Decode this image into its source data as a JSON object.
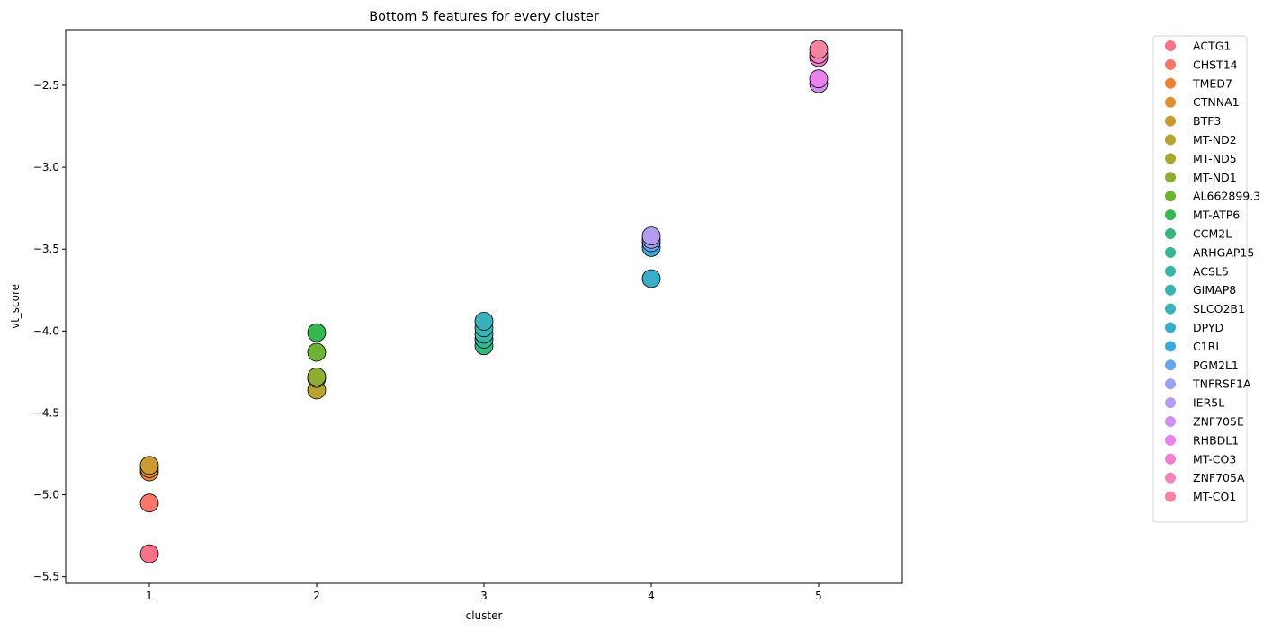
{
  "chart_data": {
    "type": "scatter",
    "title": "Bottom 5 features for every cluster",
    "xlabel": "cluster",
    "ylabel": "vt_score",
    "xlim": [
      0.5,
      5.5
    ],
    "ylim": [
      -5.54,
      -2.16
    ],
    "x_ticks": [
      1,
      2,
      3,
      4,
      5
    ],
    "x_tick_labels": [
      "1",
      "2",
      "3",
      "4",
      "5"
    ],
    "y_ticks": [
      -5.5,
      -5.0,
      -4.5,
      -4.0,
      -3.5,
      -3.0,
      -2.5
    ],
    "y_tick_labels": [
      "−5.5",
      "−5.0",
      "−4.5",
      "−4.0",
      "−3.5",
      "−3.0",
      "−2.5"
    ],
    "grid": false,
    "legend_position": "outside-right",
    "series": [
      {
        "name": "ACTG1",
        "color": "#f77189",
        "points": [
          [
            1,
            -5.36
          ]
        ]
      },
      {
        "name": "CHST14",
        "color": "#f7776b",
        "points": [
          [
            1,
            -5.05
          ]
        ]
      },
      {
        "name": "TMED7",
        "color": "#ee8138",
        "points": [
          [
            1,
            -4.86
          ]
        ]
      },
      {
        "name": "CTNNA1",
        "color": "#de8f32",
        "points": [
          [
            1,
            -4.84
          ]
        ]
      },
      {
        "name": "BTF3",
        "color": "#cc9a32",
        "points": [
          [
            1,
            -4.82
          ]
        ]
      },
      {
        "name": "MT-ND2",
        "color": "#b8a232",
        "points": [
          [
            2,
            -4.36
          ]
        ]
      },
      {
        "name": "MT-ND5",
        "color": "#a5a832",
        "points": [
          [
            2,
            -4.29
          ]
        ]
      },
      {
        "name": "MT-ND1",
        "color": "#8fad33",
        "points": [
          [
            2,
            -4.28
          ]
        ]
      },
      {
        "name": "AL662899.3",
        "color": "#6db333",
        "points": [
          [
            2,
            -4.13
          ]
        ]
      },
      {
        "name": "MT-ATP6",
        "color": "#35b64e",
        "points": [
          [
            2,
            -4.01
          ]
        ]
      },
      {
        "name": "CCM2L",
        "color": "#35b77e",
        "points": [
          [
            3,
            -4.09
          ]
        ]
      },
      {
        "name": "ARHGAP15",
        "color": "#36b694",
        "points": [
          [
            3,
            -4.05
          ]
        ]
      },
      {
        "name": "ACSL5",
        "color": "#37b5a4",
        "points": [
          [
            3,
            -4.02
          ]
        ]
      },
      {
        "name": "GIMAP8",
        "color": "#38b3b1",
        "points": [
          [
            3,
            -3.98
          ]
        ]
      },
      {
        "name": "SLCO2B1",
        "color": "#39b1bd",
        "points": [
          [
            3,
            -3.94
          ]
        ]
      },
      {
        "name": "DPYD",
        "color": "#3aaec9",
        "points": [
          [
            4,
            -3.68
          ]
        ]
      },
      {
        "name": "C1RL",
        "color": "#3ca9d8",
        "points": [
          [
            4,
            -3.49
          ]
        ]
      },
      {
        "name": "PGM2L1",
        "color": "#6aa5e9",
        "points": [
          [
            4,
            -3.46
          ]
        ]
      },
      {
        "name": "TNFRSF1A",
        "color": "#97a2f0",
        "points": [
          [
            4,
            -3.44
          ]
        ]
      },
      {
        "name": "IER5L",
        "color": "#b49bf3",
        "points": [
          [
            4,
            -3.42
          ]
        ]
      },
      {
        "name": "ZNF705E",
        "color": "#cf8ff4",
        "points": [
          [
            5,
            -2.49
          ]
        ]
      },
      {
        "name": "RHBDL1",
        "color": "#e982ed",
        "points": [
          [
            5,
            -2.46
          ]
        ]
      },
      {
        "name": "MT-CO3",
        "color": "#f27fd2",
        "points": [
          [
            5,
            -2.33
          ]
        ]
      },
      {
        "name": "ZNF705A",
        "color": "#f483b8",
        "points": [
          [
            5,
            -2.31
          ]
        ]
      },
      {
        "name": "MT-CO1",
        "color": "#f5859f",
        "points": [
          [
            5,
            -2.28
          ]
        ]
      }
    ]
  }
}
